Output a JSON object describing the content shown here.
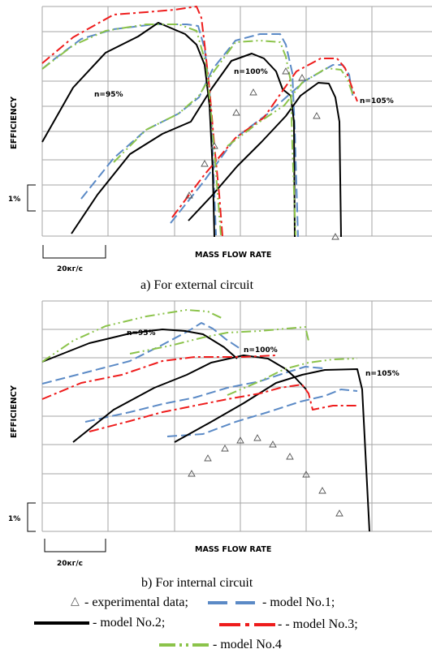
{
  "chart_data": [
    {
      "type": "line",
      "caption": "a) For external circuit",
      "xlabel": "MASS FLOW RATE",
      "ylabel": "EFFICIENCY",
      "x_scale_bar": "20кг/с",
      "y_scale_bar": "1%",
      "annotations": [
        "n=95%",
        "n=100%",
        "n=105%"
      ],
      "series": [
        {
          "name": "model No.1",
          "style": "dashed",
          "color": "#5b8ac6",
          "curves": [
            [
              [
                52,
                85
              ],
              [
                64,
                75
              ],
              [
                100,
                48
              ],
              [
                140,
                36
              ],
              [
                190,
                30
              ],
              [
                230,
                30
              ],
              [
                244,
                32
              ],
              [
                252,
                60
              ],
              [
                258,
                110
              ],
              [
                262,
                190
              ],
              [
                266,
                290
              ]
            ],
            [
              [
                100,
                245
              ],
              [
                140,
                195
              ],
              [
                180,
                160
              ],
              [
                220,
                140
              ],
              [
                245,
                120
              ],
              [
                262,
                85
              ],
              [
                290,
                50
              ],
              [
                320,
                42
              ],
              [
                345,
                42
              ],
              [
                352,
                55
              ],
              [
                360,
                90
              ],
              [
                363,
                160
              ],
              [
                367,
                292
              ]
            ],
            [
              [
                210,
                275
              ],
              [
                250,
                225
              ],
              [
                290,
                170
              ],
              [
                330,
                140
              ],
              [
                350,
                122
              ],
              [
                375,
                100
              ],
              [
                410,
                80
              ],
              [
                422,
                80
              ],
              [
                430,
                92
              ],
              [
                435,
                122
              ]
            ]
          ]
        },
        {
          "name": "model No.2",
          "style": "solid",
          "color": "#000000",
          "curves": [
            [
              [
                52,
                175
              ],
              [
                90,
                108
              ],
              [
                130,
                65
              ],
              [
                170,
                45
              ],
              [
                195,
                28
              ],
              [
                228,
                42
              ],
              [
                242,
                55
              ],
              [
                252,
                80
              ],
              [
                258,
                130
              ],
              [
                262,
                210
              ],
              [
                264,
                292
              ]
            ],
            [
              [
                88,
                288
              ],
              [
                120,
                240
              ],
              [
                160,
                190
              ],
              [
                200,
                165
              ],
              [
                235,
                150
              ],
              [
                260,
                110
              ],
              [
                285,
                75
              ],
              [
                310,
                66
              ],
              [
                325,
                72
              ],
              [
                340,
                88
              ],
              [
                348,
                110
              ],
              [
                358,
                118
              ],
              [
                362,
                150
              ],
              [
                363,
                292
              ]
            ],
            [
              [
                232,
                272
              ],
              [
                262,
                240
              ],
              [
                292,
                205
              ],
              [
                322,
                175
              ],
              [
                352,
                143
              ],
              [
                370,
                118
              ],
              [
                392,
                102
              ],
              [
                405,
                103
              ],
              [
                413,
                120
              ],
              [
                418,
                150
              ],
              [
                420,
                292
              ]
            ]
          ]
        },
        {
          "name": "model No.3",
          "style": "dashdot",
          "color": "#ee1c1c",
          "curves": [
            [
              [
                52,
                78
              ],
              [
                90,
                46
              ],
              [
                140,
                18
              ],
              [
                180,
                15
              ],
              [
                215,
                12
              ],
              [
                242,
                8
              ],
              [
                248,
                22
              ],
              [
                252,
                55
              ],
              [
                258,
                110
              ],
              [
                264,
                180
              ],
              [
                270,
                240
              ],
              [
                274,
                292
              ]
            ],
            [
              [
                212,
                268
              ],
              [
                252,
                215
              ],
              [
                290,
                170
              ],
              [
                325,
                145
              ],
              [
                348,
                112
              ],
              [
                365,
                88
              ],
              [
                395,
                72
              ],
              [
                415,
                72
              ],
              [
                425,
                84
              ],
              [
                435,
                112
              ],
              [
                440,
                125
              ]
            ]
          ]
        },
        {
          "name": "model No.4",
          "style": "dashdotdot",
          "color": "#8bc34a",
          "curves": [
            [
              [
                52,
                85
              ],
              [
                90,
                56
              ],
              [
                130,
                38
              ],
              [
                180,
                30
              ],
              [
                220,
                30
              ],
              [
                242,
                38
              ],
              [
                254,
                80
              ],
              [
                260,
                140
              ],
              [
                265,
                200
              ],
              [
                272,
                290
              ]
            ],
            [
              [
                140,
                200
              ],
              [
                180,
                160
              ],
              [
                220,
                140
              ],
              [
                245,
                118
              ],
              [
                262,
                90
              ],
              [
                290,
                52
              ],
              [
                320,
                50
              ],
              [
                345,
                52
              ],
              [
                352,
                70
              ],
              [
                358,
                100
              ],
              [
                360,
                180
              ],
              [
                364,
                290
              ]
            ],
            [
              [
                280,
                180
              ],
              [
                320,
                150
              ],
              [
                350,
                130
              ],
              [
                372,
                102
              ],
              [
                402,
                84
              ],
              [
                420,
                86
              ],
              [
                428,
                98
              ],
              [
                435,
                118
              ]
            ]
          ]
        }
      ],
      "experimental_points": [
        [
          233,
          241
        ],
        [
          252,
          202
        ],
        [
          264,
          180
        ],
        [
          291,
          139
        ],
        [
          312,
          114
        ],
        [
          352,
          88
        ],
        [
          372,
          96
        ],
        [
          390,
          143
        ],
        [
          413,
          292
        ]
      ]
    },
    {
      "type": "line",
      "caption": "b) For internal circuit",
      "xlabel": "MASS FLOW RATE",
      "ylabel": "EFFICIENCY",
      "x_scale_bar": "20кг/с",
      "y_scale_bar": "1%",
      "annotations": [
        "n=95%",
        "n=100%",
        "n=105%"
      ],
      "series": [
        {
          "name": "model No.1",
          "style": "dashed",
          "color": "#5b8ac6",
          "curves": [
            [
              [
                52,
                473
              ],
              [
                110,
                458
              ],
              [
                160,
                445
              ],
              [
                200,
                425
              ],
              [
                232,
                408
              ],
              [
                248,
                398
              ],
              [
                262,
                405
              ],
              [
                278,
                418
              ],
              [
                296,
                430
              ]
            ],
            [
              [
                105,
                520
              ],
              [
                160,
                508
              ],
              [
                200,
                498
              ],
              [
                240,
                490
              ],
              [
                280,
                478
              ],
              [
                320,
                470
              ],
              [
                350,
                460
              ],
              [
                376,
                452
              ],
              [
                398,
                454
              ]
            ],
            [
              [
                206,
                538
              ],
              [
                250,
                535
              ],
              [
                290,
                520
              ],
              [
                330,
                508
              ],
              [
                370,
                495
              ],
              [
                400,
                488
              ],
              [
                420,
                480
              ],
              [
                440,
                482
              ]
            ]
          ]
        },
        {
          "name": "model No.2",
          "style": "solid",
          "color": "#000000",
          "curves": [
            [
              [
                52,
                446
              ],
              [
                110,
                423
              ],
              [
                160,
                411
              ],
              [
                200,
                406
              ],
              [
                228,
                408
              ],
              [
                250,
                412
              ],
              [
                276,
                428
              ],
              [
                292,
                442
              ]
            ],
            [
              [
                90,
                545
              ],
              [
                140,
                505
              ],
              [
                190,
                478
              ],
              [
                230,
                462
              ],
              [
                260,
                447
              ],
              [
                300,
                438
              ],
              [
                330,
                442
              ],
              [
                352,
                455
              ],
              [
                363,
                465
              ],
              [
                377,
                480
              ]
            ],
            [
              [
                215,
                545
              ],
              [
                260,
                520
              ],
              [
                300,
                497
              ],
              [
                340,
                472
              ],
              [
                372,
                462
              ],
              [
                400,
                456
              ],
              [
                440,
                455
              ],
              [
                446,
                480
              ],
              [
                455,
                655
              ]
            ]
          ]
        },
        {
          "name": "model No.3",
          "style": "dashdot",
          "color": "#ee1c1c",
          "curves": [
            [
              [
                52,
                492
              ],
              [
                100,
                472
              ],
              [
                150,
                462
              ],
              [
                200,
                445
              ],
              [
                240,
                440
              ],
              [
                270,
                440
              ],
              [
                300,
                440
              ],
              [
                340,
                438
              ]
            ],
            [
              [
                110,
                532
              ],
              [
                160,
                519
              ],
              [
                200,
                508
              ],
              [
                240,
                500
              ],
              [
                280,
                492
              ],
              [
                320,
                485
              ],
              [
                345,
                478
              ],
              [
                372,
                474
              ],
              [
                380,
                485
              ],
              [
                385,
                505
              ],
              [
                410,
                500
              ],
              [
                440,
                500
              ]
            ]
          ]
        },
        {
          "name": "model No.4",
          "style": "dashdotdot",
          "color": "#8bc34a",
          "curves": [
            [
              [
                52,
                446
              ],
              [
                90,
                420
              ],
              [
                130,
                402
              ],
              [
                180,
                390
              ],
              [
                230,
                382
              ],
              [
                256,
                384
              ],
              [
                275,
                393
              ]
            ],
            [
              [
                160,
                436
              ],
              [
                210,
                426
              ],
              [
                250,
                416
              ],
              [
                280,
                410
              ],
              [
                320,
                408
              ],
              [
                353,
                405
              ],
              [
                376,
                403
              ],
              [
                380,
                420
              ]
            ],
            [
              [
                280,
                487
              ],
              [
                320,
                470
              ],
              [
                350,
                455
              ],
              [
                380,
                447
              ],
              [
                410,
                443
              ],
              [
                440,
                442
              ]
            ]
          ]
        }
      ],
      "experimental_points": [
        [
          236,
          584
        ],
        [
          256,
          565
        ],
        [
          277,
          553
        ],
        [
          296,
          543
        ],
        [
          317,
          540
        ],
        [
          336,
          548
        ],
        [
          357,
          563
        ],
        [
          377,
          585
        ],
        [
          397,
          605
        ],
        [
          418,
          633
        ]
      ]
    }
  ],
  "legend": {
    "marker_text": "△",
    "item_experimental": "- experimental data;",
    "item_model1": "- model No.1;",
    "item_model2": "- model No.2;",
    "item_model3": "- - model No.3;",
    "item_model4": "- model No.4"
  }
}
